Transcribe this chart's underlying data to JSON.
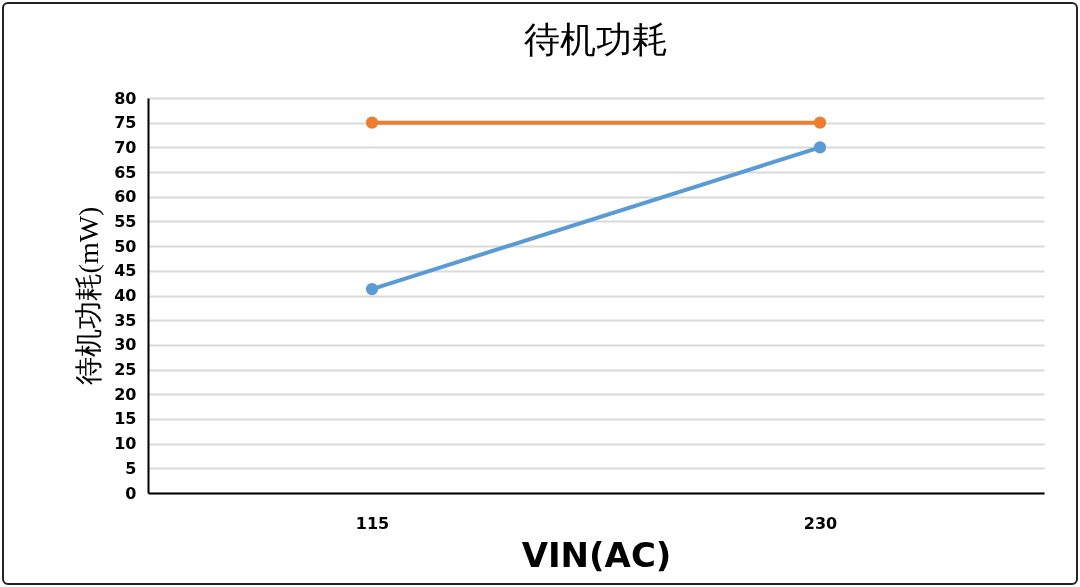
{
  "chart_data": {
    "type": "line",
    "title": "待机功耗",
    "xlabel": "VIN(AC)",
    "ylabel": "待机功耗(mW)",
    "categories": [
      "115",
      "230"
    ],
    "series": [
      {
        "color": "#ed7d31",
        "values": [
          75,
          75
        ]
      },
      {
        "color": "#5b9bd5",
        "values": [
          41.3,
          70
        ]
      }
    ],
    "ylim": [
      0,
      80
    ],
    "yticks": [
      0,
      5,
      10,
      15,
      20,
      25,
      30,
      35,
      40,
      45,
      50,
      55,
      60,
      65,
      70,
      75,
      80
    ],
    "grid": "y",
    "marker": "circle",
    "line_style": "solid"
  }
}
